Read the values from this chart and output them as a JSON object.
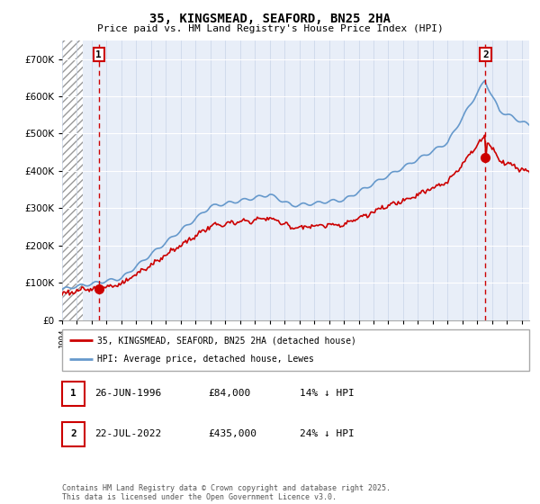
{
  "title": "35, KINGSMEAD, SEAFORD, BN25 2HA",
  "subtitle": "Price paid vs. HM Land Registry's House Price Index (HPI)",
  "legend_line1": "35, KINGSMEAD, SEAFORD, BN25 2HA (detached house)",
  "legend_line2": "HPI: Average price, detached house, Lewes",
  "transaction1_label": "1",
  "transaction1_date": "26-JUN-1996",
  "transaction1_price": "£84,000",
  "transaction1_hpi": "14% ↓ HPI",
  "transaction2_label": "2",
  "transaction2_date": "22-JUL-2022",
  "transaction2_price": "£435,000",
  "transaction2_hpi": "24% ↓ HPI",
  "footer": "Contains HM Land Registry data © Crown copyright and database right 2025.\nThis data is licensed under the Open Government Licence v3.0.",
  "price_color": "#cc0000",
  "hpi_color": "#6699cc",
  "vline_color": "#cc0000",
  "background_color": "#e8eef8",
  "ylim": [
    0,
    750000
  ],
  "xlim_start": 1994.0,
  "xlim_end": 2025.5,
  "point1_x": 1996.48,
  "point1_y": 84000,
  "point2_x": 2022.55,
  "point2_y": 435000,
  "hatch_end": 1995.4
}
